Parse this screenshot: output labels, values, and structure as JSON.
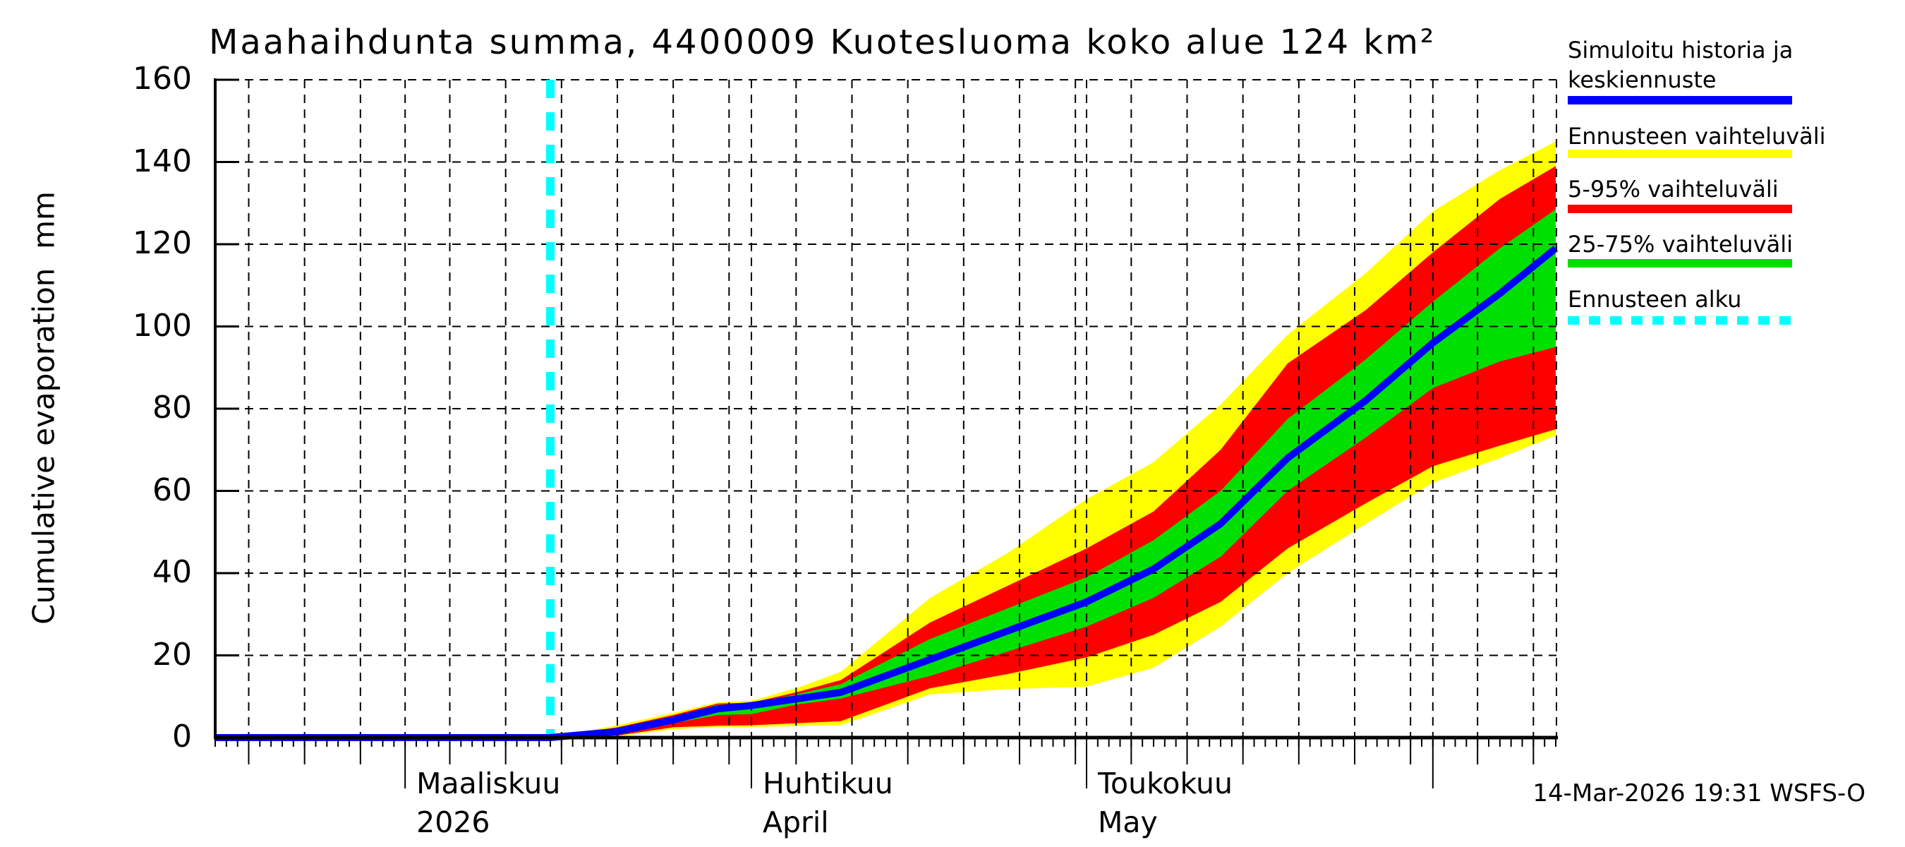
{
  "title": "Maahaihdunta summa, 4400009 Kuotesluoma koko alue 124 km²",
  "timestamp": "14-Mar-2026 19:31 WSFS-O",
  "y_axis": {
    "label": "Cumulative evaporation  mm",
    "ticks": [
      0,
      20,
      40,
      60,
      80,
      100,
      120,
      140,
      160
    ]
  },
  "x_axis": {
    "months": [
      {
        "label": "Maaliskuu",
        "sub": "2026",
        "start_day": -13
      },
      {
        "label": "Huhtikuu",
        "sub": "April",
        "start_day": 18
      },
      {
        "label": "Toukokuu",
        "sub": "May",
        "start_day": 48
      }
    ]
  },
  "legend": [
    {
      "lines": [
        "Simuloitu historia ja",
        "keskiennuste"
      ],
      "color": "#0000ff",
      "style": "solid"
    },
    {
      "lines": [
        "Ennusteen vaihteluväli"
      ],
      "color": "#ffff00",
      "style": "solid"
    },
    {
      "lines": [
        "5-95% vaihteluväli"
      ],
      "color": "#ff0000",
      "style": "solid"
    },
    {
      "lines": [
        "25-75% vaihteluväli"
      ],
      "color": "#00e000",
      "style": "solid"
    },
    {
      "lines": [
        "Ennusteen alku"
      ],
      "color": "#00ffff",
      "style": "dashed"
    }
  ],
  "chart_data": {
    "type": "area",
    "title": "Maahaihdunta summa, 4400009 Kuotesluoma koko alue 124 km²",
    "ylabel": "Cumulative evaporation mm",
    "ylim": [
      0,
      160
    ],
    "ytick_step": 20,
    "grid": true,
    "x_unit": "days (0 = forecast start 14-Mar-2026)",
    "x_range_days": [
      -30,
      90
    ],
    "forecast_start_day": 0,
    "forecast_start_color": "#00ffff",
    "history": {
      "name": "Simuloitu historia",
      "color": "#0000ff",
      "x": [
        -30,
        0
      ],
      "values": [
        0,
        0
      ]
    },
    "month_grid": [
      {
        "start_day": -41,
        "days": 28
      },
      {
        "start_day": -13,
        "days": 31
      },
      {
        "start_day": 18,
        "days": 30
      },
      {
        "start_day": 48,
        "days": 31
      },
      {
        "start_day": 79,
        "days": 30
      }
    ],
    "x": [
      0,
      6,
      11,
      15,
      18,
      22,
      26,
      34,
      41,
      48,
      54,
      60,
      66,
      73,
      79,
      85,
      90
    ],
    "series": [
      {
        "name": "keskiennuste (mediaani)",
        "color": "#0000ff",
        "values": [
          0,
          1.5,
          4.3,
          7,
          7.8,
          9.4,
          11,
          19,
          26,
          33,
          41,
          52,
          68,
          82,
          96,
          108,
          119
        ]
      },
      {
        "name": "25% fraktiili",
        "color": "#00e000",
        "values": [
          0,
          1,
          3.5,
          5.5,
          5.7,
          8,
          9.5,
          15,
          21,
          27,
          34,
          44,
          60,
          73,
          85,
          91.5,
          95
        ]
      },
      {
        "name": "75% fraktiili",
        "color": "#00e000",
        "values": [
          0,
          2,
          5,
          8,
          8.2,
          10.5,
          13,
          24,
          31.5,
          39,
          48,
          60,
          77.5,
          92,
          106,
          119,
          128.5
        ]
      },
      {
        "name": "5% fraktiili",
        "color": "#ff0000",
        "values": [
          0,
          0.5,
          2.5,
          2.9,
          3,
          3.5,
          4,
          12,
          15.5,
          19.5,
          25,
          33,
          46,
          57,
          66,
          71,
          75
        ]
      },
      {
        "name": "95% fraktiili",
        "color": "#ff0000",
        "values": [
          0,
          2.5,
          5.5,
          8.3,
          8.5,
          11,
          14,
          28,
          37,
          46,
          55,
          70,
          91,
          104,
          118,
          131,
          139
        ]
      },
      {
        "name": "minimi",
        "color": "#ffff00",
        "values": [
          0,
          0.3,
          2,
          2.6,
          2.6,
          2.8,
          3,
          10.5,
          11.8,
          12.4,
          17,
          27,
          40,
          52,
          62,
          68,
          73.5
        ]
      },
      {
        "name": "maksimi",
        "color": "#ffff00",
        "values": [
          0,
          3,
          6,
          8.6,
          9,
          12,
          16,
          34,
          45,
          58,
          67,
          81,
          98,
          113,
          128,
          138,
          145
        ]
      }
    ]
  }
}
